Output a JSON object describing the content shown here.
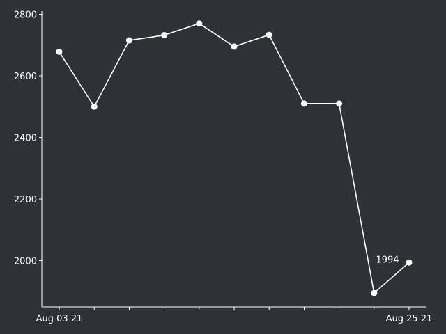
{
  "colors": {
    "background": "#303136",
    "line": "#ffffff",
    "axis": "#ffffff",
    "text": "#ffffff"
  },
  "chart_data": {
    "type": "line",
    "title": "",
    "xlabel": "",
    "ylabel": "",
    "x": [
      "Aug 03 21",
      "",
      "",
      "",
      "",
      "",
      "",
      "",
      "",
      "",
      "Aug 25 21"
    ],
    "series": [
      {
        "values": [
          2678,
          2500,
          2715,
          2732,
          2770,
          2695,
          2733,
          2510,
          2510,
          1895,
          1994
        ]
      }
    ],
    "ylim": [
      1850,
      2810
    ],
    "yticks": [
      2000,
      2200,
      2400,
      2600,
      2800
    ],
    "x_tick_labels": [
      {
        "index": 0,
        "label": "Aug 03 21"
      },
      {
        "index": 10,
        "label": "Aug 25 21"
      }
    ],
    "annotations": [
      {
        "index": 10,
        "text": "1994"
      }
    ],
    "grid": false,
    "legend": "none"
  }
}
